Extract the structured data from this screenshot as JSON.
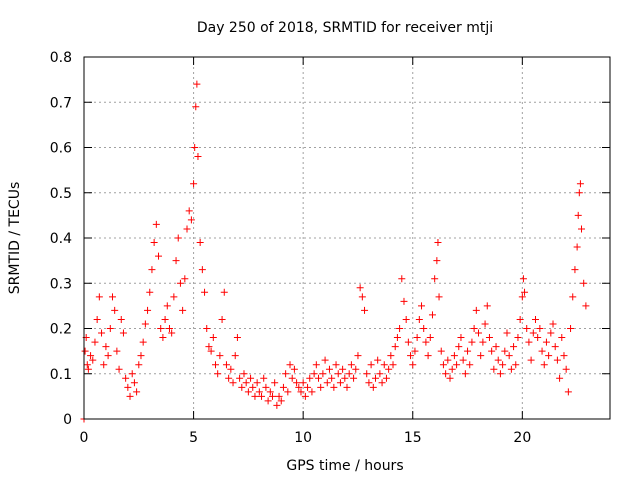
{
  "chart_data": {
    "type": "scatter",
    "title": "Day 250 of 2018, SRMTID for receiver mtji",
    "xlabel": "GPS time / hours",
    "ylabel": "SRMTID / TECUs",
    "xlim": [
      0,
      24
    ],
    "ylim": [
      0,
      0.8
    ],
    "xticks": [
      0,
      5,
      10,
      15,
      20
    ],
    "yticks": [
      0,
      0.1,
      0.2,
      0.3,
      0.4,
      0.5,
      0.6,
      0.7,
      0.8
    ],
    "xtick_labels": [
      "0",
      "5",
      "10",
      "15",
      "20"
    ],
    "ytick_labels": [
      "0",
      "0.1",
      "0.2",
      "0.3",
      "0.4",
      "0.5",
      "0.6",
      "0.7",
      "0.8"
    ],
    "grid": true,
    "marker": "+",
    "marker_color": "#ff0000",
    "series": [
      {
        "name": "SRMTID",
        "points": [
          [
            0.0,
            0.0
          ],
          [
            0.05,
            0.15
          ],
          [
            0.1,
            0.18
          ],
          [
            0.15,
            0.12
          ],
          [
            0.2,
            0.11
          ],
          [
            0.3,
            0.14
          ],
          [
            0.4,
            0.13
          ],
          [
            0.5,
            0.17
          ],
          [
            0.6,
            0.22
          ],
          [
            0.7,
            0.27
          ],
          [
            0.8,
            0.19
          ],
          [
            0.9,
            0.12
          ],
          [
            1.0,
            0.16
          ],
          [
            1.1,
            0.14
          ],
          [
            1.2,
            0.2
          ],
          [
            1.3,
            0.27
          ],
          [
            1.4,
            0.24
          ],
          [
            1.5,
            0.15
          ],
          [
            1.6,
            0.11
          ],
          [
            1.7,
            0.22
          ],
          [
            1.8,
            0.19
          ],
          [
            1.9,
            0.09
          ],
          [
            2.0,
            0.07
          ],
          [
            2.1,
            0.05
          ],
          [
            2.2,
            0.1
          ],
          [
            2.3,
            0.08
          ],
          [
            2.4,
            0.06
          ],
          [
            2.5,
            0.12
          ],
          [
            2.6,
            0.14
          ],
          [
            2.7,
            0.17
          ],
          [
            2.8,
            0.21
          ],
          [
            2.9,
            0.24
          ],
          [
            3.0,
            0.28
          ],
          [
            3.1,
            0.33
          ],
          [
            3.2,
            0.39
          ],
          [
            3.3,
            0.43
          ],
          [
            3.4,
            0.36
          ],
          [
            3.5,
            0.2
          ],
          [
            3.6,
            0.18
          ],
          [
            3.7,
            0.22
          ],
          [
            3.8,
            0.25
          ],
          [
            3.9,
            0.2
          ],
          [
            4.0,
            0.19
          ],
          [
            4.1,
            0.27
          ],
          [
            4.2,
            0.35
          ],
          [
            4.3,
            0.4
          ],
          [
            4.4,
            0.3
          ],
          [
            4.5,
            0.24
          ],
          [
            4.6,
            0.31
          ],
          [
            4.7,
            0.42
          ],
          [
            4.8,
            0.46
          ],
          [
            4.9,
            0.44
          ],
          [
            5.0,
            0.52
          ],
          [
            5.05,
            0.6
          ],
          [
            5.1,
            0.69
          ],
          [
            5.15,
            0.74
          ],
          [
            5.2,
            0.58
          ],
          [
            5.3,
            0.39
          ],
          [
            5.4,
            0.33
          ],
          [
            5.5,
            0.28
          ],
          [
            5.6,
            0.2
          ],
          [
            5.7,
            0.16
          ],
          [
            5.8,
            0.15
          ],
          [
            5.9,
            0.18
          ],
          [
            6.0,
            0.12
          ],
          [
            6.1,
            0.1
          ],
          [
            6.2,
            0.14
          ],
          [
            6.3,
            0.22
          ],
          [
            6.4,
            0.28
          ],
          [
            6.5,
            0.12
          ],
          [
            6.6,
            0.09
          ],
          [
            6.7,
            0.11
          ],
          [
            6.8,
            0.08
          ],
          [
            6.9,
            0.14
          ],
          [
            7.0,
            0.18
          ],
          [
            7.1,
            0.09
          ],
          [
            7.2,
            0.07
          ],
          [
            7.3,
            0.1
          ],
          [
            7.4,
            0.08
          ],
          [
            7.5,
            0.06
          ],
          [
            7.6,
            0.09
          ],
          [
            7.7,
            0.07
          ],
          [
            7.8,
            0.05
          ],
          [
            7.9,
            0.08
          ],
          [
            8.0,
            0.06
          ],
          [
            8.1,
            0.05
          ],
          [
            8.2,
            0.09
          ],
          [
            8.3,
            0.07
          ],
          [
            8.4,
            0.04
          ],
          [
            8.5,
            0.06
          ],
          [
            8.6,
            0.05
          ],
          [
            8.7,
            0.08
          ],
          [
            8.8,
            0.03
          ],
          [
            8.9,
            0.05
          ],
          [
            9.0,
            0.04
          ],
          [
            9.1,
            0.07
          ],
          [
            9.2,
            0.1
          ],
          [
            9.3,
            0.06
          ],
          [
            9.4,
            0.12
          ],
          [
            9.5,
            0.09
          ],
          [
            9.6,
            0.11
          ],
          [
            9.7,
            0.08
          ],
          [
            9.8,
            0.07
          ],
          [
            9.9,
            0.06
          ],
          [
            10.0,
            0.08
          ],
          [
            10.1,
            0.05
          ],
          [
            10.2,
            0.07
          ],
          [
            10.3,
            0.09
          ],
          [
            10.4,
            0.06
          ],
          [
            10.5,
            0.1
          ],
          [
            10.6,
            0.12
          ],
          [
            10.7,
            0.09
          ],
          [
            10.8,
            0.07
          ],
          [
            10.9,
            0.1
          ],
          [
            11.0,
            0.13
          ],
          [
            11.1,
            0.08
          ],
          [
            11.2,
            0.11
          ],
          [
            11.3,
            0.09
          ],
          [
            11.4,
            0.07
          ],
          [
            11.5,
            0.12
          ],
          [
            11.6,
            0.1
          ],
          [
            11.7,
            0.08
          ],
          [
            11.8,
            0.11
          ],
          [
            11.9,
            0.09
          ],
          [
            12.0,
            0.07
          ],
          [
            12.1,
            0.1
          ],
          [
            12.2,
            0.12
          ],
          [
            12.3,
            0.09
          ],
          [
            12.4,
            0.11
          ],
          [
            12.5,
            0.14
          ],
          [
            12.6,
            0.29
          ],
          [
            12.7,
            0.27
          ],
          [
            12.8,
            0.24
          ],
          [
            12.9,
            0.1
          ],
          [
            13.0,
            0.08
          ],
          [
            13.1,
            0.12
          ],
          [
            13.2,
            0.07
          ],
          [
            13.3,
            0.09
          ],
          [
            13.4,
            0.13
          ],
          [
            13.5,
            0.1
          ],
          [
            13.6,
            0.08
          ],
          [
            13.7,
            0.12
          ],
          [
            13.8,
            0.09
          ],
          [
            13.9,
            0.11
          ],
          [
            14.0,
            0.14
          ],
          [
            14.1,
            0.12
          ],
          [
            14.2,
            0.16
          ],
          [
            14.3,
            0.18
          ],
          [
            14.4,
            0.2
          ],
          [
            14.5,
            0.31
          ],
          [
            14.6,
            0.26
          ],
          [
            14.7,
            0.22
          ],
          [
            14.8,
            0.17
          ],
          [
            14.9,
            0.14
          ],
          [
            15.0,
            0.12
          ],
          [
            15.1,
            0.15
          ],
          [
            15.2,
            0.18
          ],
          [
            15.3,
            0.22
          ],
          [
            15.4,
            0.25
          ],
          [
            15.5,
            0.2
          ],
          [
            15.6,
            0.17
          ],
          [
            15.7,
            0.14
          ],
          [
            15.8,
            0.18
          ],
          [
            15.9,
            0.23
          ],
          [
            16.0,
            0.31
          ],
          [
            16.1,
            0.35
          ],
          [
            16.15,
            0.39
          ],
          [
            16.2,
            0.27
          ],
          [
            16.3,
            0.15
          ],
          [
            16.4,
            0.12
          ],
          [
            16.5,
            0.1
          ],
          [
            16.6,
            0.13
          ],
          [
            16.7,
            0.09
          ],
          [
            16.8,
            0.11
          ],
          [
            16.9,
            0.14
          ],
          [
            17.0,
            0.12
          ],
          [
            17.1,
            0.16
          ],
          [
            17.2,
            0.18
          ],
          [
            17.3,
            0.13
          ],
          [
            17.4,
            0.1
          ],
          [
            17.5,
            0.15
          ],
          [
            17.6,
            0.12
          ],
          [
            17.7,
            0.17
          ],
          [
            17.8,
            0.2
          ],
          [
            17.9,
            0.24
          ],
          [
            18.0,
            0.19
          ],
          [
            18.1,
            0.14
          ],
          [
            18.2,
            0.17
          ],
          [
            18.3,
            0.21
          ],
          [
            18.4,
            0.25
          ],
          [
            18.5,
            0.18
          ],
          [
            18.6,
            0.15
          ],
          [
            18.7,
            0.11
          ],
          [
            18.8,
            0.16
          ],
          [
            18.9,
            0.13
          ],
          [
            19.0,
            0.1
          ],
          [
            19.1,
            0.12
          ],
          [
            19.2,
            0.15
          ],
          [
            19.3,
            0.19
          ],
          [
            19.4,
            0.14
          ],
          [
            19.5,
            0.11
          ],
          [
            19.6,
            0.16
          ],
          [
            19.7,
            0.12
          ],
          [
            19.8,
            0.18
          ],
          [
            19.9,
            0.22
          ],
          [
            20.0,
            0.27
          ],
          [
            20.05,
            0.31
          ],
          [
            20.1,
            0.28
          ],
          [
            20.2,
            0.2
          ],
          [
            20.3,
            0.17
          ],
          [
            20.4,
            0.13
          ],
          [
            20.5,
            0.19
          ],
          [
            20.6,
            0.22
          ],
          [
            20.7,
            0.18
          ],
          [
            20.8,
            0.2
          ],
          [
            20.9,
            0.15
          ],
          [
            21.0,
            0.12
          ],
          [
            21.1,
            0.17
          ],
          [
            21.2,
            0.14
          ],
          [
            21.3,
            0.19
          ],
          [
            21.4,
            0.21
          ],
          [
            21.5,
            0.16
          ],
          [
            21.6,
            0.13
          ],
          [
            21.7,
            0.09
          ],
          [
            21.8,
            0.18
          ],
          [
            21.9,
            0.14
          ],
          [
            22.0,
            0.11
          ],
          [
            22.1,
            0.06
          ],
          [
            22.2,
            0.2
          ],
          [
            22.3,
            0.27
          ],
          [
            22.4,
            0.33
          ],
          [
            22.5,
            0.38
          ],
          [
            22.55,
            0.45
          ],
          [
            22.6,
            0.5
          ],
          [
            22.65,
            0.52
          ],
          [
            22.7,
            0.42
          ],
          [
            22.8,
            0.3
          ],
          [
            22.9,
            0.25
          ]
        ]
      }
    ]
  }
}
